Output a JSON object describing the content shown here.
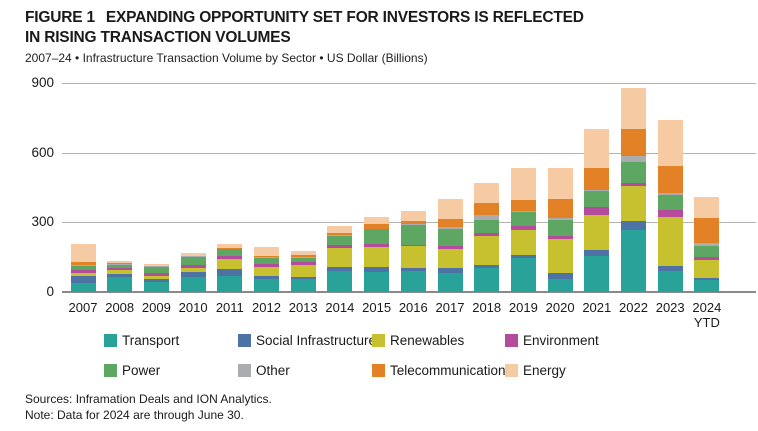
{
  "figure": {
    "label": "FIGURE 1",
    "title_line1": "EXPANDING OPPORTUNITY SET FOR INVESTORS IS REFLECTED",
    "title_line2": "IN RISING TRANSACTION VOLUMES",
    "subtitle": "2007–24 • Infrastructure Transaction Volume by Sector • US Dollar (Billions)"
  },
  "footer": {
    "sources": "Sources: Inframation Deals and ION Analytics.",
    "note": "Note: Data for 2024 are through June 30."
  },
  "chart_data": {
    "type": "bar",
    "stacked": true,
    "title": "Infrastructure Transaction Volume by Sector",
    "ylabel": "US Dollar (Billions)",
    "ylim": [
      0,
      900
    ],
    "yticks": [
      0,
      300,
      600,
      900
    ],
    "grid": true,
    "legend_position": "bottom",
    "categories": [
      "2007",
      "2008",
      "2009",
      "2010",
      "2011",
      "2012",
      "2013",
      "2014",
      "2015",
      "2016",
      "2017",
      "2018",
      "2019",
      "2020",
      "2021",
      "2022",
      "2023",
      "2024\nYTD"
    ],
    "series": [
      {
        "name": "Transport",
        "color": "#29A39A",
        "values": [
          38,
          65,
          42,
          65,
          70,
          55,
          55,
          91,
          87,
          91,
          83,
          103,
          145,
          58,
          156,
          265,
          91,
          53
        ]
      },
      {
        "name": "Social Infrastructure",
        "color": "#4C73A3",
        "values": [
          32,
          13,
          12,
          20,
          28,
          12,
          9,
          17,
          19,
          14,
          19,
          14,
          14,
          25,
          25,
          40,
          20,
          9
        ]
      },
      {
        "name": "Renewables",
        "color": "#C7C02F",
        "values": [
          12,
          16,
          17,
          19,
          46,
          42,
          52,
          82,
          89,
          94,
          85,
          126,
          109,
          145,
          149,
          150,
          211,
          78
        ]
      },
      {
        "name": "Environment",
        "color": "#B44B9D",
        "values": [
          14,
          10,
          12,
          14,
          9,
          13,
          14,
          12,
          12,
          5,
          12,
          11,
          17,
          14,
          35,
          14,
          32,
          12
        ]
      },
      {
        "name": "Power",
        "color": "#5EA763",
        "values": [
          14,
          13,
          26,
          33,
          32,
          25,
          17,
          39,
          63,
          85,
          72,
          57,
          58,
          67,
          72,
          93,
          65,
          46
        ]
      },
      {
        "name": "Other",
        "color": "#AAACAF",
        "values": [
          6,
          2,
          2,
          2,
          2,
          3,
          2,
          3,
          3,
          3,
          9,
          20,
          4,
          10,
          4,
          24,
          7,
          14
        ]
      },
      {
        "name": "Telecommunications",
        "color": "#E28126",
        "values": [
          14,
          4,
          2,
          3,
          3,
          5,
          12,
          9,
          19,
          12,
          36,
          51,
          48,
          83,
          94,
          114,
          118,
          105
        ]
      },
      {
        "name": "Energy",
        "color": "#F6CBA3",
        "values": [
          75,
          10,
          6,
          10,
          15,
          38,
          17,
          32,
          33,
          46,
          83,
          87,
          140,
          130,
          165,
          180,
          195,
          91
        ]
      }
    ]
  },
  "style": {
    "gridline_color": "#b3b3b3",
    "zero_line_color": "#8a8a8a",
    "text_color": "#1a1a1a"
  }
}
